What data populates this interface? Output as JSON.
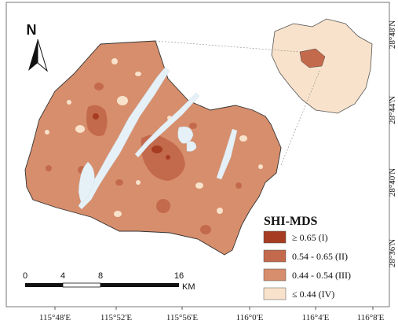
{
  "colors": {
    "class1": "#a63c22",
    "class2": "#c46a4c",
    "class3": "#d78e6c",
    "class4": "#f8e2cb",
    "water": "#e6f0f7",
    "frame": "#333333"
  },
  "north_arrow": {
    "letter": "N"
  },
  "longitude_ticks": [
    "115°48'E",
    "115°52'E",
    "115°56'E",
    "116°0'E",
    "116°4'E",
    "116°8'E"
  ],
  "latitude_ticks": [
    "28°48'N",
    "28°44'N",
    "28°40'N",
    "28°36'N"
  ],
  "scale_bar": {
    "labels": [
      "0",
      "4",
      "8",
      "16"
    ],
    "unit": "KM"
  },
  "legend": {
    "title": "SHI-MDS",
    "items": [
      {
        "label": "≥ 0.65 (I)",
        "color": "#a63c22"
      },
      {
        "label": "0.54 - 0.65  (II)",
        "color": "#c46a4c"
      },
      {
        "label": "0.44 - 0.54  (III)",
        "color": "#d78e6c"
      },
      {
        "label": "≤ 0.44  (IV)",
        "color": "#f8e2cb"
      }
    ]
  }
}
